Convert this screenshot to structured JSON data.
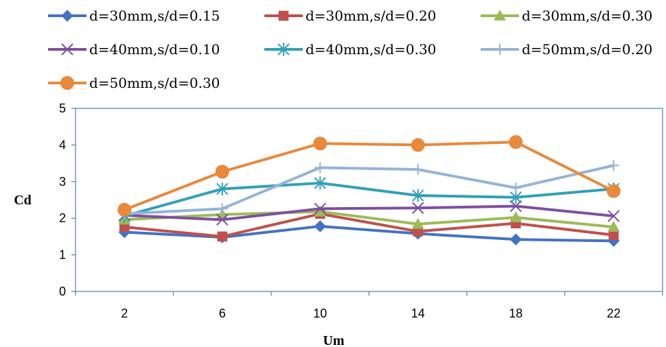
{
  "chart_data": {
    "type": "line",
    "title": "",
    "xlabel": "Um",
    "ylabel": "Cd",
    "x": [
      2,
      6,
      10,
      14,
      18,
      22
    ],
    "x_tick_labels": [
      "2",
      "6",
      "10",
      "14",
      "18",
      "22"
    ],
    "ylim": [
      0,
      5
    ],
    "y_tick_labels": [
      "0",
      "1",
      "2",
      "3",
      "4",
      "5"
    ],
    "grid": false,
    "legend_position": "top",
    "series": [
      {
        "name": "d=30mm,s/d=0.15",
        "color": "#4472c4",
        "marker": "diamond",
        "values": [
          1.62,
          1.48,
          1.78,
          1.58,
          1.42,
          1.38
        ]
      },
      {
        "name": "d=30mm,s/d=0.20",
        "color": "#c0504d",
        "marker": "square",
        "values": [
          1.76,
          1.5,
          2.12,
          1.64,
          1.86,
          1.54
        ]
      },
      {
        "name": "d=30mm,s/d=0.30",
        "color": "#9bbb59",
        "marker": "triangle",
        "values": [
          1.96,
          2.1,
          2.18,
          1.84,
          2.02,
          1.76
        ]
      },
      {
        "name": "d=40mm,s/d=0.10",
        "color": "#7f4f9f",
        "marker": "x",
        "values": [
          2.08,
          1.96,
          2.26,
          2.28,
          2.33,
          2.06
        ]
      },
      {
        "name": "d=40mm,s/d=0.30",
        "color": "#31a0b8",
        "marker": "asterisk",
        "values": [
          2.06,
          2.8,
          2.96,
          2.62,
          2.57,
          2.8
        ]
      },
      {
        "name": "d=50mm,s/d=0.20",
        "color": "#95b3d7",
        "marker": "plus",
        "values": [
          2.12,
          2.26,
          3.38,
          3.33,
          2.83,
          3.44
        ]
      },
      {
        "name": "d=50mm,s/d=0.30",
        "color": "#e8893b",
        "marker": "circle",
        "values": [
          2.23,
          3.27,
          4.04,
          4.0,
          4.08,
          2.74
        ]
      }
    ]
  }
}
